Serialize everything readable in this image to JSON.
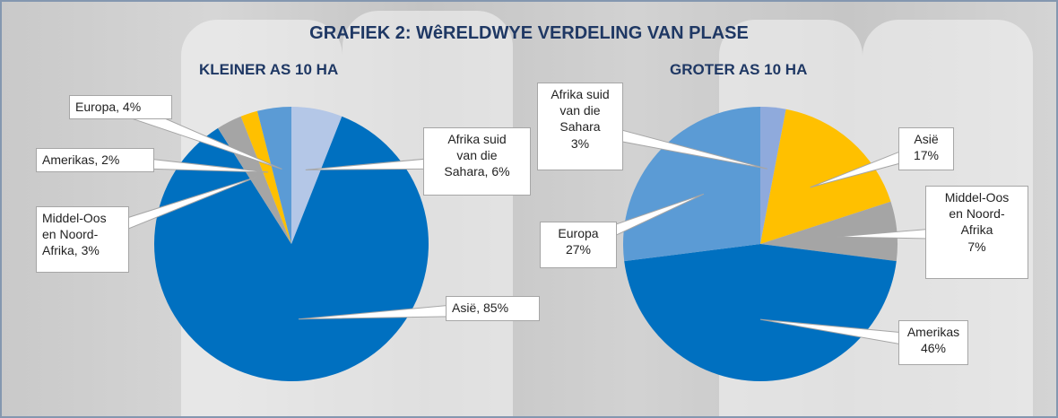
{
  "title": "GRAFIEK 2: WêRELDWYE VERDELING VAN PLASE",
  "chart_data": [
    {
      "type": "pie",
      "title": "KLEINER AS 10 HA",
      "values": [
        6,
        85,
        3,
        2,
        4
      ],
      "value_labels": [
        "Afrika suid\nvan die\nSahara, 6%",
        "Asië, 85%",
        "Middel-Oos\nen Noord-\nAfrika, 3%",
        "Amerikas, 2%",
        "Europa, 4%"
      ],
      "colors": [
        "#b4c7e7",
        "#0070c0",
        "#a5a5a5",
        "#ffc000",
        "#5b9bd5"
      ]
    },
    {
      "type": "pie",
      "title": "GROTER AS 10 HA",
      "values": [
        3,
        17,
        7,
        46,
        27
      ],
      "value_labels": [
        "Afrika suid\nvan die\nSahara\n3%",
        "Asië\n17%",
        "Middel-Oos\nen Noord-\nAfrika\n7%",
        "Amerikas\n46%",
        "Europa\n27%"
      ],
      "colors": [
        "#8faadc",
        "#ffc000",
        "#a5a5a5",
        "#0070c0",
        "#5b9bd5"
      ]
    }
  ]
}
